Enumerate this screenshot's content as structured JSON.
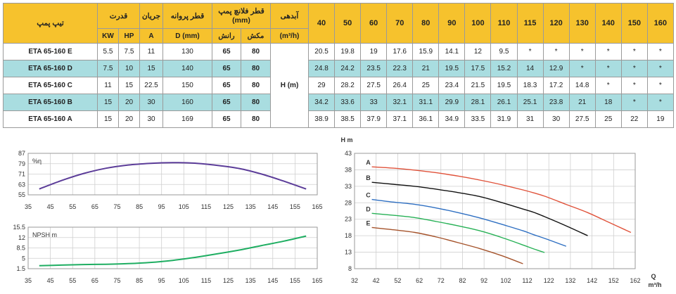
{
  "table": {
    "headers": {
      "model": "تیپ پمپ",
      "power": "قدرت",
      "current": "جریان",
      "impeller": "قطر پروانه",
      "flange": "قطر فلانچ پمپ (mm)",
      "flow": "آبدهی",
      "kw": "KW",
      "hp": "HP",
      "amp": "A",
      "d_mm": "D (mm)",
      "discharge": "رانش",
      "suction": "مکش",
      "flow_unit": "(m³/h)",
      "head_label": "H (m)"
    },
    "flows": [
      "40",
      "50",
      "60",
      "70",
      "80",
      "90",
      "100",
      "110",
      "115",
      "120",
      "130",
      "140",
      "150",
      "160"
    ],
    "rows": [
      {
        "model": "ETA 65-160 E",
        "kw": "5.5",
        "hp": "7.5",
        "a": "11",
        "d": "130",
        "discharge": "65",
        "suction": "80",
        "heads": [
          "20.5",
          "19.8",
          "19",
          "17.6",
          "15.9",
          "14.1",
          "12",
          "9.5",
          "*",
          "*",
          "*",
          "*",
          "*",
          "*"
        ]
      },
      {
        "model": "ETA 65-160 D",
        "kw": "7.5",
        "hp": "10",
        "a": "15",
        "d": "140",
        "discharge": "65",
        "suction": "80",
        "heads": [
          "24.8",
          "24.2",
          "23.5",
          "22.3",
          "21",
          "19.5",
          "17.5",
          "15.2",
          "14",
          "12.9",
          "*",
          "*",
          "*",
          "*"
        ]
      },
      {
        "model": "ETA 65-160 C",
        "kw": "11",
        "hp": "15",
        "a": "22.5",
        "d": "150",
        "discharge": "65",
        "suction": "80",
        "heads": [
          "29",
          "28.2",
          "27.5",
          "26.4",
          "25",
          "23.4",
          "21.5",
          "19.5",
          "18.3",
          "17.2",
          "14.8",
          "*",
          "*",
          "*"
        ]
      },
      {
        "model": "ETA 65-160 B",
        "kw": "15",
        "hp": "20",
        "a": "30",
        "d": "160",
        "discharge": "65",
        "suction": "80",
        "heads": [
          "34.2",
          "33.6",
          "33",
          "32.1",
          "31.1",
          "29.9",
          "28.1",
          "26.1",
          "25.1",
          "23.8",
          "21",
          "18",
          "*",
          "*"
        ]
      },
      {
        "model": "ETA 65-160 A",
        "kw": "15",
        "hp": "20",
        "a": "30",
        "d": "169",
        "discharge": "65",
        "suction": "80",
        "heads": [
          "38.9",
          "38.5",
          "37.9",
          "37.1",
          "36.1",
          "34.9",
          "33.5",
          "31.9",
          "31",
          "30",
          "27.5",
          "25",
          "22",
          "19"
        ]
      }
    ]
  },
  "chart_data": [
    {
      "type": "line",
      "ylabel": "%η",
      "xlim": [
        35,
        165
      ],
      "ylim": [
        55,
        87
      ],
      "xticks": [
        "35",
        "45",
        "55",
        "65",
        "75",
        "85",
        "95",
        "105",
        "115",
        "125",
        "135",
        "145",
        "155",
        "165"
      ],
      "yticks": [
        "87",
        "79",
        "71",
        "63",
        "55"
      ],
      "grid": true,
      "color": "#5c3d99",
      "series": [
        {
          "x": [
            40,
            50,
            60,
            70,
            80,
            90,
            100,
            110,
            120,
            130,
            140,
            150,
            160
          ],
          "y": [
            59.5,
            66,
            71.5,
            75.5,
            78,
            79.3,
            79.8,
            79.4,
            77.7,
            75.3,
            71,
            65.5,
            59.5
          ]
        }
      ]
    },
    {
      "type": "line",
      "ylabel": "NPSH m",
      "xlim": [
        35,
        165
      ],
      "ylim": [
        1.5,
        15.5
      ],
      "xticks": [
        "35",
        "45",
        "55",
        "65",
        "75",
        "85",
        "95",
        "105",
        "115",
        "125",
        "135",
        "145",
        "155",
        "165"
      ],
      "yticks": [
        "15.5",
        "12",
        "8.5",
        "5",
        "1.5"
      ],
      "grid": true,
      "color": "#1fae62",
      "series": [
        {
          "x": [
            40,
            50,
            60,
            70,
            80,
            90,
            100,
            110,
            120,
            130,
            140,
            150,
            160
          ],
          "y": [
            2.5,
            2.7,
            2.9,
            3.0,
            3.2,
            3.6,
            4.3,
            5.3,
            6.5,
            7.8,
            9.3,
            10.8,
            12.5
          ]
        }
      ]
    },
    {
      "type": "line",
      "xlabel": "Q m³/h",
      "ylabel": "H m",
      "xlim": [
        32,
        162
      ],
      "ylim": [
        8,
        43
      ],
      "xticks": [
        "32",
        "42",
        "52",
        "62",
        "72",
        "82",
        "92",
        "102",
        "112",
        "122",
        "132",
        "142",
        "152",
        "162"
      ],
      "yticks": [
        "43",
        "38",
        "33",
        "28",
        "23",
        "18",
        "13",
        "8"
      ],
      "grid": true,
      "series": [
        {
          "name": "A",
          "color": "#e0523a",
          "x": [
            40,
            50,
            60,
            70,
            80,
            90,
            100,
            110,
            115,
            120,
            130,
            140,
            150,
            160
          ],
          "y": [
            38.9,
            38.5,
            37.9,
            37.1,
            36.1,
            34.9,
            33.5,
            31.9,
            31,
            30,
            27.5,
            25,
            22,
            19
          ]
        },
        {
          "name": "B",
          "color": "#111111",
          "x": [
            40,
            50,
            60,
            70,
            80,
            90,
            100,
            110,
            115,
            120,
            130,
            140
          ],
          "y": [
            34.2,
            33.6,
            33,
            32.1,
            31.1,
            29.9,
            28.1,
            26.1,
            25.1,
            23.8,
            21,
            18
          ]
        },
        {
          "name": "C",
          "color": "#2e6fc2",
          "x": [
            40,
            50,
            60,
            70,
            80,
            90,
            100,
            110,
            115,
            120,
            130
          ],
          "y": [
            29,
            28.2,
            27.5,
            26.4,
            25,
            23.4,
            21.5,
            19.5,
            18.3,
            17.2,
            14.8
          ]
        },
        {
          "name": "D",
          "color": "#27b156",
          "x": [
            40,
            50,
            60,
            70,
            80,
            90,
            100,
            110,
            115,
            120
          ],
          "y": [
            24.8,
            24.2,
            23.5,
            22.3,
            21,
            19.5,
            17.5,
            15.2,
            14,
            12.9
          ]
        },
        {
          "name": "E",
          "color": "#a5532b",
          "x": [
            40,
            50,
            60,
            70,
            80,
            90,
            100,
            110
          ],
          "y": [
            20.5,
            19.8,
            19,
            17.6,
            15.9,
            14.1,
            12,
            9.5
          ]
        }
      ]
    }
  ]
}
